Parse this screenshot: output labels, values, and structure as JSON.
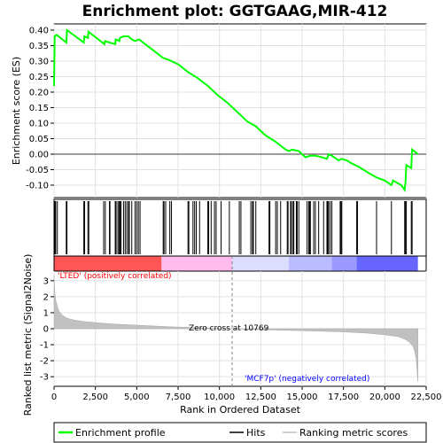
{
  "chart_data": {
    "type": "line",
    "title": "Enrichment plot: GGTGAAG,MIR-412",
    "xlabel": "Rank in Ordered Dataset",
    "ylabel_top": "Enrichment score (ES)",
    "ylabel_bottom": "Ranked list metric (Signal2Noise)",
    "xlim": [
      0,
      22500
    ],
    "x_ticks": [
      0,
      2500,
      5000,
      7500,
      10000,
      12500,
      15000,
      17500,
      20000,
      22500
    ],
    "x_tick_labels": [
      "0",
      "2,500",
      "5,000",
      "7,500",
      "10,000",
      "12,500",
      "15,000",
      "17,500",
      "20,000",
      "22,500"
    ],
    "es_ylim": [
      -0.14,
      0.42
    ],
    "es_ticks": [
      -0.1,
      -0.05,
      0.0,
      0.05,
      0.1,
      0.15,
      0.2,
      0.25,
      0.3,
      0.35,
      0.4
    ],
    "es_tick_labels": [
      "-0.10",
      "-0.05",
      "0.00",
      "0.05",
      "0.10",
      "0.15",
      "0.20",
      "0.25",
      "0.30",
      "0.35",
      "0.40"
    ],
    "metric_ylim": [
      -3.6,
      3.6
    ],
    "metric_ticks": [
      -3,
      -2,
      -1,
      0,
      1,
      2,
      3
    ],
    "metric_tick_labels": [
      "-3",
      "-2",
      "-1",
      "0",
      "1",
      "2",
      "3"
    ],
    "grid": true,
    "colors": {
      "es_line": "#00ff00",
      "hits": "#000000",
      "metric_fill": "#c0c0c0",
      "zero_cross_line": "#808080",
      "positive_label": "#ff0000",
      "negative_label": "#0000ff"
    },
    "es_curve": {
      "x": [
        0,
        40,
        150,
        750,
        780,
        1800,
        1830,
        2050,
        2080,
        3050,
        3080,
        3350,
        3700,
        3730,
        3950,
        3980,
        4200,
        4500,
        4700,
        4900,
        5150,
        5500,
        6000,
        6600,
        6900,
        7500,
        8100,
        8700,
        9300,
        9900,
        10500,
        11100,
        11700,
        12200,
        12800,
        13400,
        14000,
        14200,
        14400,
        14800,
        15200,
        15500,
        15800,
        16200,
        16500,
        16600,
        16800,
        17200,
        17400,
        17700,
        18000,
        18400,
        19000,
        19500,
        20000,
        20400,
        20500,
        21000,
        21200,
        21250,
        21300,
        21600,
        21650,
        22000
      ],
      "y": [
        0.22,
        0.38,
        0.385,
        0.36,
        0.4,
        0.36,
        0.38,
        0.375,
        0.395,
        0.355,
        0.365,
        0.36,
        0.355,
        0.37,
        0.365,
        0.375,
        0.38,
        0.38,
        0.37,
        0.365,
        0.37,
        0.355,
        0.335,
        0.31,
        0.305,
        0.29,
        0.265,
        0.245,
        0.22,
        0.19,
        0.165,
        0.135,
        0.105,
        0.09,
        0.06,
        0.04,
        0.015,
        0.01,
        0.015,
        0.01,
        -0.01,
        -0.005,
        -0.005,
        -0.01,
        -0.015,
        0.0,
        -0.005,
        -0.02,
        -0.015,
        -0.02,
        -0.03,
        -0.04,
        -0.06,
        -0.075,
        -0.085,
        -0.1,
        -0.085,
        -0.1,
        -0.115,
        -0.09,
        -0.035,
        -0.045,
        0.015,
        0.0
      ]
    },
    "hits": [
      30,
      60,
      100,
      200,
      740,
      780,
      1800,
      1850,
      2050,
      2100,
      3000,
      3100,
      3350,
      3380,
      3700,
      3720,
      3800,
      3900,
      3950,
      4000,
      4050,
      4200,
      4300,
      4400,
      4500,
      4550,
      4700,
      4900,
      5000,
      5100,
      5200,
      6600,
      6650,
      6750,
      7000,
      7100,
      8100,
      8150,
      8400,
      8500,
      8600,
      8800,
      9300,
      9350,
      9500,
      9700,
      9800,
      10100,
      10600,
      11200,
      11300,
      11900,
      12000,
      12050,
      12200,
      13000,
      13050,
      13400,
      13500,
      13700,
      14100,
      14150,
      14300,
      14350,
      14450,
      14500,
      14650,
      14700,
      14800,
      15300,
      15400,
      15450,
      15500,
      15700,
      15800,
      16000,
      16300,
      16500,
      16550,
      16600,
      16700,
      16800,
      17300,
      17350,
      17400,
      18300,
      18350,
      19500,
      20400,
      21200,
      21250,
      21300,
      21600,
      21650
    ],
    "metric_curve": {
      "x": [
        0,
        50,
        100,
        200,
        300,
        500,
        800,
        1200,
        1800,
        2500,
        3500,
        5000,
        7000,
        9000,
        10769,
        12000,
        14000,
        16000,
        17500,
        19000,
        20000,
        20800,
        21200,
        21500,
        21700,
        21800,
        21900,
        21950,
        22000
      ],
      "y": [
        3.3,
        2.2,
        1.8,
        1.4,
        1.1,
        0.85,
        0.65,
        0.55,
        0.45,
        0.38,
        0.3,
        0.22,
        0.12,
        0.05,
        0.0,
        -0.05,
        -0.1,
        -0.15,
        -0.2,
        -0.28,
        -0.38,
        -0.5,
        -0.65,
        -0.85,
        -1.1,
        -1.4,
        -1.9,
        -2.6,
        -3.3
      ]
    },
    "ranking_bar": {
      "positive_gradient_end": 10769,
      "segments": [
        {
          "start": 0,
          "end": 6500,
          "color": "#ff5555"
        },
        {
          "start": 6500,
          "end": 10769,
          "color": "#ffbbee"
        },
        {
          "start": 10769,
          "end": 14200,
          "color": "#ddddff"
        },
        {
          "start": 14200,
          "end": 16800,
          "color": "#bbbbff"
        },
        {
          "start": 16800,
          "end": 18300,
          "color": "#9999ff"
        },
        {
          "start": 18300,
          "end": 22000,
          "color": "#6666ff"
        }
      ]
    },
    "zero_cross": 10769,
    "annotations": {
      "positive_label": "'LTED' (positively correlated)",
      "negative_label": "'MCF7p' (negatively correlated)",
      "zero_cross_label": "Zero cross at 10769"
    },
    "legend": {
      "placement": "bottom",
      "entries": [
        {
          "label": "Enrichment profile",
          "type": "line",
          "color": "#00ff00"
        },
        {
          "label": "Hits",
          "type": "line",
          "color": "#000000"
        },
        {
          "label": "Ranking metric scores",
          "type": "line",
          "color": "#c0c0c0"
        }
      ]
    }
  }
}
